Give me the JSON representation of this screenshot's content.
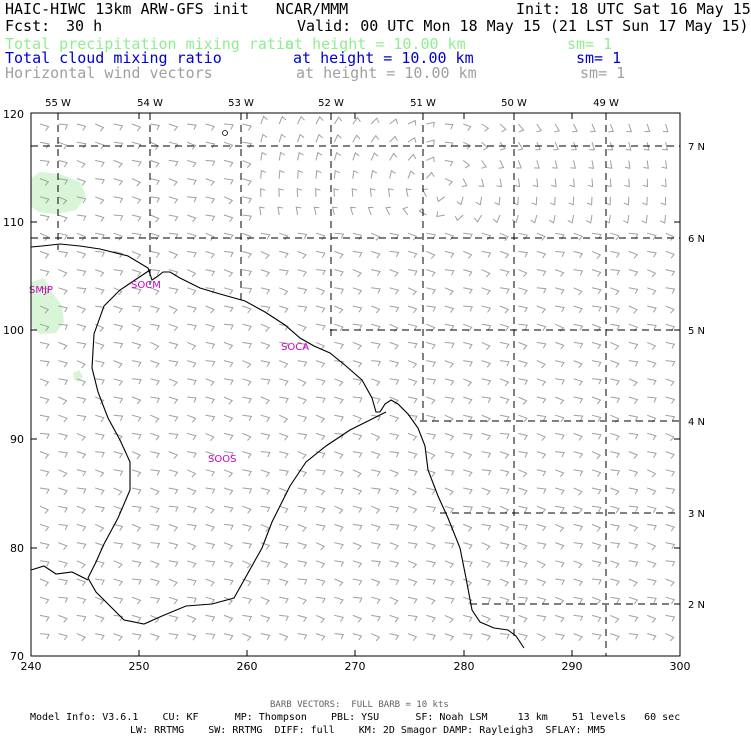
{
  "header": {
    "title_left": "HAIC-HIWC 13km ARW-GFS init   NCAR/MMM",
    "init": "Init: 18 UTC Sat 16 May 15",
    "fcst_label": "Fcst:",
    "fcst_value": "30 h",
    "valid": "Valid: 00 UTC Mon 18 May 15 (21 LST Sun 17 May 15)",
    "fields": [
      {
        "name": "Total precipitation mixing ratio",
        "height": "at height = 10.00 km",
        "sm": "sm= 1",
        "color": "#90EE90"
      },
      {
        "name": "Total cloud mixing ratio",
        "height": "at height = 10.00 km",
        "sm": "sm= 1",
        "color": "#0000CD"
      },
      {
        "name": "Horizontal wind vectors",
        "height": "at height = 10.00 km",
        "sm": "sm= 1",
        "color": "#A0A0A0"
      }
    ]
  },
  "map": {
    "x_ticks": [
      "240",
      "250",
      "260",
      "270",
      "280",
      "290",
      "300"
    ],
    "y_ticks": [
      "70",
      "80",
      "90",
      "100",
      "110",
      "120"
    ],
    "lon_labels": [
      "55 W",
      "54 W",
      "53 W",
      "52 W",
      "51 W",
      "50 W",
      "49 W"
    ],
    "lat_labels": [
      "7 N",
      "6 N",
      "5 N",
      "4 N",
      "3 N",
      "2 N"
    ],
    "station_labels": [
      "SMJP",
      "SOCM",
      "SOCA",
      "SOOS"
    ],
    "station_color": "#CC00CC",
    "precip_color": "#D8F5D8",
    "barb_color": "#A0A0A0"
  },
  "footer": {
    "barb_note": "BARB VECTORS:  FULL BARB = 10 kts",
    "model_line1": "Model Info: V3.6.1    CU: KF      MP: Thompson    PBL: YSU      SF: Noah LSM     13 km    51 levels   60 sec",
    "model_line2": "LW: RRTMG    SW: RRTMG  DIFF: full    KM: 2D Smagor DAMP: Rayleigh3  SFLAY: MM5"
  }
}
